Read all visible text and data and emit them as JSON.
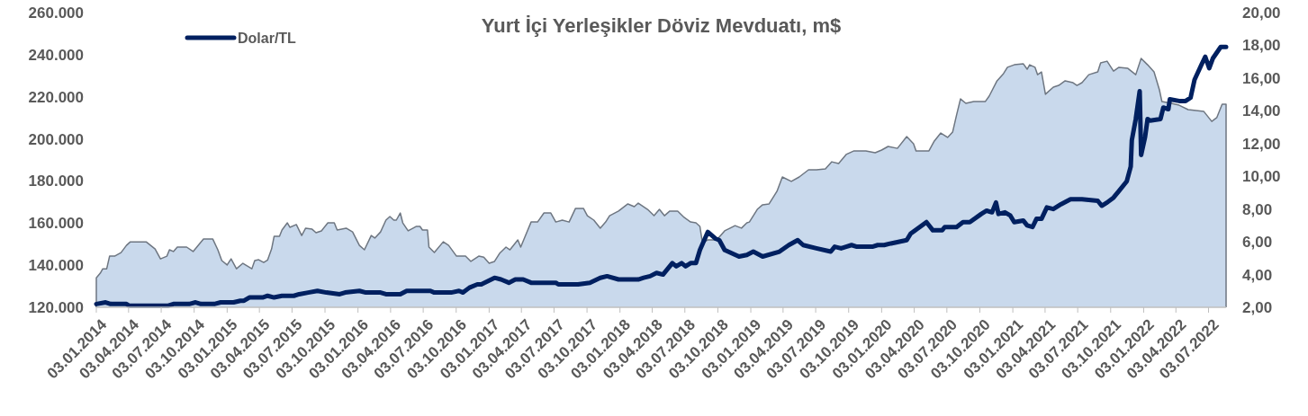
{
  "chart_data": {
    "type": "area",
    "title": "Yurt İçi Yerleşikler Döviz Mevduatı, m$",
    "legend": "top left",
    "xlim": [
      "2014-01-03",
      "2022-08-21"
    ],
    "ylim": [
      120000,
      260000
    ],
    "yticks": [
      {
        "value": 120000,
        "label": "120.000"
      },
      {
        "value": 140000,
        "label": "140.000"
      },
      {
        "value": 160000,
        "label": "160.000"
      },
      {
        "value": 180000,
        "label": "180.000"
      },
      {
        "value": 200000,
        "label": "200.000"
      },
      {
        "value": 220000,
        "label": "220.000"
      },
      {
        "value": 240000,
        "label": "240.000"
      },
      {
        "value": 260000,
        "label": "260.000"
      }
    ],
    "y2lim": [
      2,
      20
    ],
    "y2ticks": [
      {
        "value": 2,
        "label": "2,00"
      },
      {
        "value": 4,
        "label": "4,00"
      },
      {
        "value": 6,
        "label": "6,00"
      },
      {
        "value": 8,
        "label": "8,00"
      },
      {
        "value": 10,
        "label": "10,00"
      },
      {
        "value": 12,
        "label": "12,00"
      },
      {
        "value": 14,
        "label": "14,00"
      },
      {
        "value": 16,
        "label": "16,00"
      },
      {
        "value": 18,
        "label": "18,00"
      },
      {
        "value": 20,
        "label": "20,00"
      }
    ],
    "xticks": [
      {
        "value": "2014-01-03",
        "label": "03.01.2014"
      },
      {
        "value": "2014-04-03",
        "label": "03.04.2014"
      },
      {
        "value": "2014-07-03",
        "label": "03.07.2014"
      },
      {
        "value": "2014-10-03",
        "label": "03.10.2014"
      },
      {
        "value": "2015-01-03",
        "label": "03.01.2015"
      },
      {
        "value": "2015-04-03",
        "label": "03.04.2015"
      },
      {
        "value": "2015-07-03",
        "label": "03.07.2015"
      },
      {
        "value": "2015-10-03",
        "label": "03.10.2015"
      },
      {
        "value": "2016-01-03",
        "label": "03.01.2016"
      },
      {
        "value": "2016-04-03",
        "label": "03.04.2016"
      },
      {
        "value": "2016-07-03",
        "label": "03.07.2016"
      },
      {
        "value": "2016-10-03",
        "label": "03.10.2016"
      },
      {
        "value": "2017-01-03",
        "label": "03.01.2017"
      },
      {
        "value": "2017-04-03",
        "label": "03.04.2017"
      },
      {
        "value": "2017-07-03",
        "label": "03.07.2017"
      },
      {
        "value": "2017-10-03",
        "label": "03.10.2017"
      },
      {
        "value": "2018-01-03",
        "label": "03.01.2018"
      },
      {
        "value": "2018-04-03",
        "label": "03.04.2018"
      },
      {
        "value": "2018-07-03",
        "label": "03.07.2018"
      },
      {
        "value": "2018-10-03",
        "label": "03.10.2018"
      },
      {
        "value": "2019-01-03",
        "label": "03.01.2019"
      },
      {
        "value": "2019-04-03",
        "label": "03.04.2019"
      },
      {
        "value": "2019-07-03",
        "label": "03.07.2019"
      },
      {
        "value": "2019-10-03",
        "label": "03.10.2019"
      },
      {
        "value": "2020-01-03",
        "label": "03.01.2020"
      },
      {
        "value": "2020-04-03",
        "label": "03.04.2020"
      },
      {
        "value": "2020-07-03",
        "label": "03.07.2020"
      },
      {
        "value": "2020-10-03",
        "label": "03.10.2020"
      },
      {
        "value": "2021-01-03",
        "label": "03.01.2021"
      },
      {
        "value": "2021-04-03",
        "label": "03.04.2021"
      },
      {
        "value": "2021-07-03",
        "label": "03.07.2021"
      },
      {
        "value": "2021-10-03",
        "label": "03.10.2021"
      },
      {
        "value": "2022-01-03",
        "label": "03.01.2022"
      },
      {
        "value": "2022-04-03",
        "label": "03.04.2022"
      },
      {
        "value": "2022-07-03",
        "label": "03.07.2022"
      }
    ],
    "series": [
      {
        "color": "#c9d9ec",
        "x": [
          "2014-01-03",
          "2014-01-14",
          "2014-01-21",
          "2014-02-01",
          "2014-02-09",
          "2014-02-23",
          "2014-03-13",
          "2014-03-28",
          "2014-04-08",
          "2014-05-03",
          "2014-05-22",
          "2014-06-16",
          "2014-07-01",
          "2014-07-19",
          "2014-07-26",
          "2014-08-06",
          "2014-08-17",
          "2014-09-12",
          "2014-09-30",
          "2014-10-29",
          "2014-11-24",
          "2014-12-08",
          "2014-12-19",
          "2015-01-03",
          "2015-01-14",
          "2015-01-29",
          "2015-02-16",
          "2015-03-13",
          "2015-03-21",
          "2015-04-01",
          "2015-04-15",
          "2015-04-26",
          "2015-05-07",
          "2015-05-14",
          "2015-05-29",
          "2015-06-05",
          "2015-06-20",
          "2015-06-27",
          "2015-07-15",
          "2015-07-30",
          "2015-08-10",
          "2015-08-28",
          "2015-09-08",
          "2015-09-23",
          "2015-10-11",
          "2015-10-29",
          "2015-11-06",
          "2015-12-01",
          "2015-12-19",
          "2016-01-07",
          "2016-01-21",
          "2016-02-09",
          "2016-02-19",
          "2016-03-06",
          "2016-03-21",
          "2016-04-01",
          "2016-04-12",
          "2016-04-19",
          "2016-04-30",
          "2016-05-07",
          "2016-05-22",
          "2016-06-13",
          "2016-06-24",
          "2016-07-01",
          "2016-07-15",
          "2016-07-19",
          "2016-08-03",
          "2016-08-28",
          "2016-09-12",
          "2016-10-04",
          "2016-10-29",
          "2016-11-13",
          "2016-12-05",
          "2016-12-19",
          "2017-01-03",
          "2017-01-18",
          "2017-02-01",
          "2017-02-19",
          "2017-03-02",
          "2017-03-24",
          "2017-04-01",
          "2017-04-30",
          "2017-05-18",
          "2017-06-05",
          "2017-06-24",
          "2017-07-08",
          "2017-07-26",
          "2017-08-14",
          "2017-09-01",
          "2017-09-23",
          "2017-10-04",
          "2017-10-22",
          "2017-11-09",
          "2017-11-24",
          "2017-12-05",
          "2017-12-30",
          "2018-01-25",
          "2018-02-12",
          "2018-02-23",
          "2018-03-21",
          "2018-04-08",
          "2018-04-23",
          "2018-05-07",
          "2018-05-22",
          "2018-06-13",
          "2018-07-01",
          "2018-07-19",
          "2018-08-03",
          "2018-08-14",
          "2018-08-21",
          "2018-09-05",
          "2018-09-30",
          "2018-10-22",
          "2018-11-20",
          "2018-12-08",
          "2018-12-23",
          "2018-12-30",
          "2019-01-21",
          "2019-02-05",
          "2019-02-23",
          "2019-03-17",
          "2019-04-01",
          "2019-04-26",
          "2019-05-18",
          "2019-06-13",
          "2019-07-05",
          "2019-07-30",
          "2019-08-17",
          "2019-09-05",
          "2019-09-26",
          "2019-10-18",
          "2019-11-20",
          "2019-12-16",
          "2020-01-03",
          "2020-01-21",
          "2020-02-16",
          "2020-03-13",
          "2020-04-01",
          "2020-04-08",
          "2020-05-14",
          "2020-05-29",
          "2020-06-16",
          "2020-07-05",
          "2020-07-19",
          "2020-07-30",
          "2020-08-10",
          "2020-08-25",
          "2020-09-16",
          "2020-10-18",
          "2020-10-29",
          "2020-11-20",
          "2020-12-08",
          "2020-12-19",
          "2021-01-07",
          "2021-02-01",
          "2021-02-12",
          "2021-02-19",
          "2021-03-06",
          "2021-03-13",
          "2021-03-24",
          "2021-04-04",
          "2021-04-26",
          "2021-05-11",
          "2021-05-29",
          "2021-06-20",
          "2021-07-01",
          "2021-07-15",
          "2021-08-03",
          "2021-08-28",
          "2021-09-05",
          "2021-09-23",
          "2021-10-11",
          "2021-10-26",
          "2021-11-20",
          "2021-12-12",
          "2021-12-27",
          "2022-01-14",
          "2022-02-01",
          "2022-02-16",
          "2022-02-23",
          "2022-03-21",
          "2022-04-12",
          "2022-05-07",
          "2022-06-20",
          "2022-07-12",
          "2022-07-26",
          "2022-08-10",
          "2022-08-21"
        ],
        "values": [
          134000,
          136200,
          138300,
          138300,
          144300,
          144300,
          146000,
          149400,
          151100,
          151000,
          151100,
          147700,
          143000,
          144300,
          147300,
          146500,
          148600,
          148600,
          146500,
          152400,
          152400,
          147300,
          142200,
          140100,
          143000,
          138300,
          140900,
          138300,
          142200,
          142600,
          141300,
          142500,
          147700,
          153700,
          153700,
          156700,
          160100,
          158000,
          159300,
          154100,
          157600,
          157100,
          155400,
          156300,
          160100,
          160100,
          156700,
          157600,
          155800,
          149400,
          147300,
          154100,
          152900,
          155800,
          161400,
          163100,
          161400,
          161400,
          164800,
          160100,
          156300,
          158400,
          158400,
          156700,
          156700,
          148600,
          146000,
          151100,
          149400,
          144300,
          144300,
          141800,
          144300,
          143800,
          140900,
          141800,
          145600,
          148600,
          147300,
          152000,
          148600,
          160500,
          160500,
          164800,
          164800,
          160500,
          161400,
          160500,
          167000,
          167000,
          163500,
          161400,
          157600,
          160500,
          163500,
          165700,
          169100,
          167800,
          169500,
          166500,
          163500,
          166500,
          163500,
          165700,
          165700,
          162700,
          160500,
          160100,
          158400,
          150700,
          152000,
          152000,
          156300,
          158800,
          157600,
          160100,
          160500,
          166500,
          168700,
          169100,
          175100,
          181900,
          179800,
          181900,
          185300,
          185300,
          185700,
          189100,
          188300,
          192600,
          194300,
          194300,
          193400,
          194700,
          196400,
          195500,
          201100,
          197700,
          194300,
          194300,
          199000,
          202800,
          200700,
          203200,
          211300,
          219000,
          216900,
          217700,
          217700,
          220300,
          227600,
          231000,
          234000,
          235200,
          235700,
          233100,
          235200,
          234000,
          230500,
          231800,
          221200,
          224600,
          225400,
          227600,
          226700,
          225400,
          226700,
          230500,
          231800,
          236100,
          236900,
          232200,
          234000,
          233500,
          230500,
          238200,
          235200,
          231800,
          223300,
          217700,
          216900,
          216000,
          213900,
          213000,
          208300,
          210100,
          216500,
          216500
        ]
      },
      {
        "type": "line",
        "name": "Dolar/TL",
        "axis": "y2",
        "color": "#002060",
        "x": [
          "2014-01-03",
          "2014-01-29",
          "2014-02-12",
          "2014-03-28",
          "2014-04-04",
          "2014-07-23",
          "2014-08-06",
          "2014-09-19",
          "2014-10-07",
          "2014-10-22",
          "2014-11-28",
          "2014-12-16",
          "2015-01-21",
          "2015-02-09",
          "2015-02-19",
          "2015-03-06",
          "2015-04-12",
          "2015-04-26",
          "2015-05-14",
          "2015-06-05",
          "2015-07-08",
          "2015-07-23",
          "2015-08-17",
          "2015-09-12",
          "2015-10-07",
          "2015-11-13",
          "2015-11-28",
          "2016-01-07",
          "2016-01-25",
          "2016-03-06",
          "2016-03-21",
          "2016-04-30",
          "2016-05-18",
          "2016-07-23",
          "2016-08-03",
          "2016-09-19",
          "2016-10-11",
          "2016-10-22",
          "2016-11-09",
          "2016-12-01",
          "2016-12-12",
          "2017-01-18",
          "2017-02-05",
          "2017-02-27",
          "2017-03-17",
          "2017-04-08",
          "2017-04-30",
          "2017-07-08",
          "2017-07-15",
          "2017-08-25",
          "2017-09-08",
          "2017-10-11",
          "2017-11-09",
          "2017-11-28",
          "2017-12-30",
          "2018-02-23",
          "2018-03-10",
          "2018-03-28",
          "2018-04-15",
          "2018-05-03",
          "2018-05-29",
          "2018-06-09",
          "2018-06-24",
          "2018-07-05",
          "2018-07-19",
          "2018-08-03",
          "2018-08-14",
          "2018-09-05",
          "2018-09-26",
          "2018-10-07",
          "2018-10-22",
          "2018-12-01",
          "2018-12-23",
          "2019-01-10",
          "2019-02-05",
          "2019-03-24",
          "2019-04-19",
          "2019-05-14",
          "2019-05-29",
          "2019-07-05",
          "2019-08-14",
          "2019-08-25",
          "2019-09-12",
          "2019-09-26",
          "2019-10-11",
          "2019-10-26",
          "2019-12-08",
          "2019-12-23",
          "2020-01-10",
          "2020-01-29",
          "2020-03-13",
          "2020-03-24",
          "2020-04-12",
          "2020-05-07",
          "2020-05-25",
          "2020-06-20",
          "2020-06-27",
          "2020-07-30",
          "2020-08-17",
          "2020-09-05",
          "2020-10-07",
          "2020-10-22",
          "2020-11-06",
          "2020-11-17",
          "2020-11-24",
          "2020-12-12",
          "2020-12-27",
          "2021-01-07",
          "2021-02-01",
          "2021-02-12",
          "2021-02-27",
          "2021-03-10",
          "2021-03-24",
          "2021-04-08",
          "2021-04-26",
          "2021-05-18",
          "2021-06-13",
          "2021-07-15",
          "2021-08-28",
          "2021-09-08",
          "2021-09-23",
          "2021-10-11",
          "2021-10-26",
          "2021-11-17",
          "2021-11-28",
          "2021-12-01",
          "2021-12-12",
          "2021-12-23",
          "2021-12-27",
          "2022-01-07",
          "2022-01-14",
          "2022-01-21",
          "2022-02-19",
          "2022-02-27",
          "2022-03-13",
          "2022-03-17",
          "2022-04-12",
          "2022-04-30",
          "2022-05-14",
          "2022-05-25",
          "2022-06-13",
          "2022-06-24",
          "2022-07-05",
          "2022-07-15",
          "2022-08-06",
          "2022-08-21"
        ],
        "values": [
          2.2,
          2.3,
          2.2,
          2.2,
          2.1,
          2.1,
          2.2,
          2.2,
          2.3,
          2.2,
          2.2,
          2.3,
          2.3,
          2.4,
          2.4,
          2.6,
          2.6,
          2.7,
          2.6,
          2.7,
          2.7,
          2.8,
          2.9,
          3,
          2.9,
          2.8,
          2.9,
          3,
          2.9,
          2.9,
          2.8,
          2.8,
          3,
          3,
          2.9,
          2.9,
          3,
          2.9,
          3.2,
          3.4,
          3.4,
          3.8,
          3.7,
          3.5,
          3.7,
          3.7,
          3.5,
          3.5,
          3.4,
          3.4,
          3.4,
          3.5,
          3.8,
          3.9,
          3.7,
          3.7,
          3.8,
          3.9,
          4.1,
          4,
          4.7,
          4.5,
          4.7,
          4.5,
          4.7,
          4.7,
          5.5,
          6.6,
          6.2,
          6.1,
          5.5,
          5.1,
          5.2,
          5.4,
          5.1,
          5.4,
          5.8,
          6.1,
          5.8,
          5.6,
          5.4,
          5.7,
          5.6,
          5.7,
          5.8,
          5.7,
          5.7,
          5.8,
          5.8,
          5.9,
          6.1,
          6.5,
          6.8,
          7.2,
          6.7,
          6.7,
          6.9,
          6.9,
          7.2,
          7.2,
          7.7,
          7.9,
          7.8,
          8.4,
          7.7,
          7.8,
          7.6,
          7.2,
          7.3,
          7,
          6.9,
          7.4,
          7.4,
          8.1,
          8,
          8.3,
          8.6,
          8.6,
          8.5,
          8.2,
          8.4,
          8.7,
          9.1,
          9.7,
          10.6,
          12.2,
          13.5,
          15.2,
          11.3,
          12.4,
          13.5,
          13.4,
          13.5,
          14.2,
          14.1,
          14.7,
          14.6,
          14.6,
          14.8,
          15.9,
          16.8,
          17.3,
          16.6,
          17.2,
          17.9,
          17.9
        ]
      }
    ]
  }
}
